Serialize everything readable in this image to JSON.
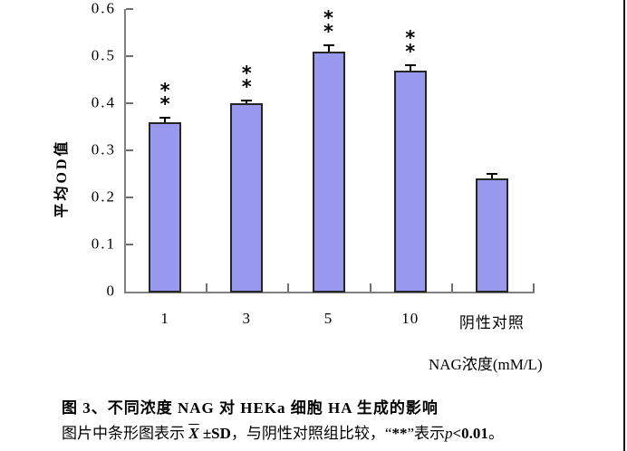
{
  "page": {
    "background": "#ffffff",
    "right_border_color": "#141414"
  },
  "chart_data": {
    "type": "bar",
    "title": "",
    "categories": [
      "1",
      "3",
      "5",
      "10",
      "阴性对照"
    ],
    "values": [
      0.36,
      0.4,
      0.51,
      0.47,
      0.24
    ],
    "errors_sd": [
      0.012,
      0.008,
      0.015,
      0.012,
      0.012
    ],
    "significance": [
      "**",
      "**",
      "**",
      "**",
      ""
    ],
    "ylabel": "平均OD值",
    "xlabel": "NAG浓度(mM/L)",
    "ylim": [
      0,
      0.6
    ],
    "ytick_labels": [
      "0",
      "0.1",
      "0.2",
      "0.3",
      "0.4",
      "0.5",
      "0.6"
    ],
    "grid": "off",
    "legend": "none",
    "bar_color": "#9999f0",
    "bar_border_color": "#262626",
    "axis_color": "#808080",
    "error_bar_color": "#000000"
  },
  "caption": {
    "line1": "图 3、不同浓度 NAG 对 HEKa 细胞 HA 生成的影响",
    "line2_t1": "图片中条形图表示 ",
    "line2_xbar": "X",
    "line2_t2a": " ±SD",
    "line2_t2b": "，与阴性对照组比较，“",
    "line2_stars": "**",
    "line2_t3": "”表示",
    "line2_p": "p",
    "line2_t4": "<0.01",
    "line2_t5": "。"
  }
}
